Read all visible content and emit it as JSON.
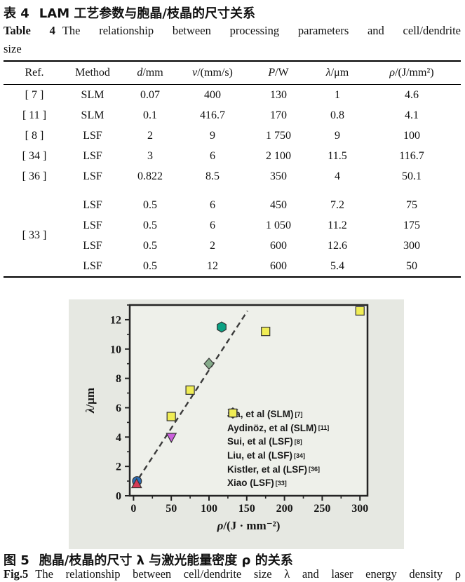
{
  "table_section": {
    "caption_zh_label": "表 4",
    "caption_zh_text": "LAM 工艺参数与胞晶/枝晶的尺寸关系",
    "caption_en_label": "Table 4",
    "caption_en_line1": "The relationship between processing parameters and cell/dendrite",
    "caption_en_line2": "size",
    "columns": [
      {
        "it": "",
        "rm": "Ref."
      },
      {
        "it": "",
        "rm": "Method"
      },
      {
        "it": "d",
        "rm": "/mm"
      },
      {
        "it": "v",
        "rm": "/(mm/s)"
      },
      {
        "it": "P",
        "rm": "/W"
      },
      {
        "it": "λ",
        "rm": "/μm"
      },
      {
        "it": "ρ",
        "rm": "/(J/mm²)"
      }
    ],
    "rows": [
      {
        "ref": "[ 7 ]",
        "refspan": 1,
        "cells": [
          "SLM",
          "0.07",
          "400",
          "130",
          "1",
          "4.6"
        ]
      },
      {
        "ref": "[ 11 ]",
        "refspan": 1,
        "cells": [
          "SLM",
          "0.1",
          "416.7",
          "170",
          "0.8",
          "4.1"
        ]
      },
      {
        "ref": "[ 8 ]",
        "refspan": 1,
        "cells": [
          "LSF",
          "2",
          "9",
          "1 750",
          "9",
          "100"
        ]
      },
      {
        "ref": "[ 34 ]",
        "refspan": 1,
        "cells": [
          "LSF",
          "3",
          "6",
          "2 100",
          "11.5",
          "116.7"
        ]
      },
      {
        "ref": "[ 36 ]",
        "refspan": 1,
        "cells": [
          "LSF",
          "0.822",
          "8.5",
          "350",
          "4",
          "50.1"
        ]
      },
      {
        "ref": "[ 33 ]",
        "refspan": 4,
        "group_start": true,
        "cells": [
          "LSF",
          "0.5",
          "6",
          "450",
          "7.2",
          "75"
        ]
      },
      {
        "cells": [
          "LSF",
          "0.5",
          "6",
          "1 050",
          "11.2",
          "175"
        ]
      },
      {
        "cells": [
          "LSF",
          "0.5",
          "2",
          "600",
          "12.6",
          "300"
        ]
      },
      {
        "cells": [
          "LSF",
          "0.5",
          "12",
          "600",
          "5.4",
          "50"
        ]
      }
    ]
  },
  "figure_section": {
    "caption_zh_label": "图 5",
    "caption_zh_text": "胞晶/枝晶的尺寸 λ 与激光能量密度 ρ 的关系",
    "caption_en_label": "Fig.5",
    "caption_en_text": "The relationship between cell/dendrite size λ and laser energy density ρ"
  },
  "chart_data": {
    "type": "scatter",
    "title": "",
    "xlabel": "ρ/(J · mm⁻²)",
    "xlabel_var": "ρ",
    "xlabel_rest": "/(J · mm⁻²)",
    "ylabel": "λ/μm",
    "ylabel_var": "λ",
    "ylabel_rest": "/μm",
    "xlim": [
      -5,
      310
    ],
    "ylim": [
      0,
      13
    ],
    "xticks": [
      0,
      50,
      100,
      150,
      200,
      250,
      300
    ],
    "xticks_minor": [
      25,
      75,
      125,
      175,
      225,
      275
    ],
    "yticks": [
      0,
      2,
      4,
      6,
      8,
      10,
      12
    ],
    "yticks_minor": [
      1,
      3,
      5,
      7,
      9,
      11,
      13
    ],
    "grid": false,
    "legend_position": "inside lower right",
    "trend_line": {
      "style": "dashed",
      "color": "#3a3a3a",
      "from": [
        7,
        1.2
      ],
      "to": [
        151,
        12.6
      ]
    },
    "series": [
      {
        "name": "Jia, et al (SLM)",
        "ref": "[7]",
        "marker": "circle",
        "color": "#2a6cb5",
        "points": [
          [
            4.6,
            1
          ]
        ]
      },
      {
        "name": "Aydinöz, et al (SLM)",
        "ref": "[11]",
        "marker": "triangle-up",
        "color": "#d63a56",
        "points": [
          [
            4.1,
            0.8
          ]
        ]
      },
      {
        "name": "Sui, et al (LSF)",
        "ref": "[8]",
        "marker": "diamond",
        "color": "#85ab8a",
        "points": [
          [
            100,
            9
          ]
        ]
      },
      {
        "name": "Liu, et al (LSF)",
        "ref": "[34]",
        "marker": "hexagon",
        "color": "#0ba183",
        "points": [
          [
            116.7,
            11.5
          ]
        ]
      },
      {
        "name": "Kistler, et al (LSF)",
        "ref": "[36]",
        "marker": "triangle-down",
        "color": "#cb5fdc",
        "points": [
          [
            50.1,
            4
          ]
        ]
      },
      {
        "name": "Xiao (LSF)",
        "ref": "[33]",
        "marker": "square",
        "color": "#f0ed55",
        "points": [
          [
            50,
            5.4
          ],
          [
            75,
            7.2
          ],
          [
            175,
            11.2
          ],
          [
            300,
            12.6
          ]
        ]
      }
    ]
  }
}
